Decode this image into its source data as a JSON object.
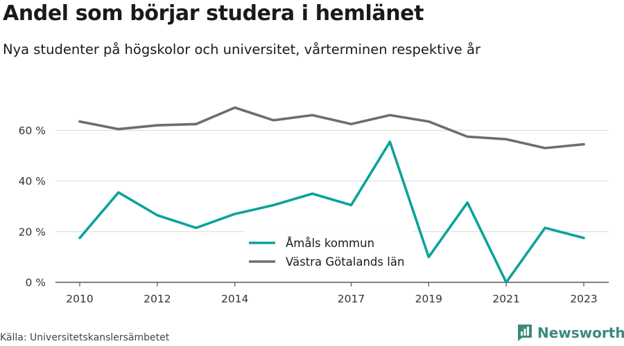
{
  "title": "Andel som börjar studera i hemlänet",
  "subtitle": "Nya studenter på högskolor och universitet, vårterminen respektive år",
  "source": "Källa: Universitetskanslersämbetet",
  "brand": {
    "name": "Newsworthy",
    "icon": "newsworthy-logo-icon"
  },
  "colors": {
    "amal": "#0aa39a",
    "vastra": "#6c6c74",
    "grid": "#d9d9d9",
    "axis": "#555555"
  },
  "chart_data": {
    "type": "line",
    "x": [
      2010,
      2011,
      2012,
      2013,
      2014,
      2015,
      2016,
      2017,
      2018,
      2019,
      2020,
      2021,
      2022,
      2023
    ],
    "xticks": [
      "2010",
      "2012",
      "2014",
      "2017",
      "2019",
      "2021",
      "2023"
    ],
    "yticks": [
      "0 %",
      "20 %",
      "40 %",
      "60 %"
    ],
    "ylim": [
      0,
      75
    ],
    "grid": true,
    "legend_position": "inside-bottom-center",
    "series": [
      {
        "name": "Åmåls kommun",
        "color": "#0aa39a",
        "values": [
          17.5,
          35.5,
          26.5,
          21.5,
          27,
          30.5,
          35,
          30.5,
          55.5,
          10,
          31.5,
          0,
          21.5,
          17.5
        ]
      },
      {
        "name": "Västra Götalands län",
        "color": "#6c6c74",
        "values": [
          63.5,
          60.5,
          62,
          62.5,
          69,
          64,
          66,
          62.5,
          66,
          63.5,
          57.5,
          56.5,
          53,
          54.5
        ]
      }
    ]
  }
}
